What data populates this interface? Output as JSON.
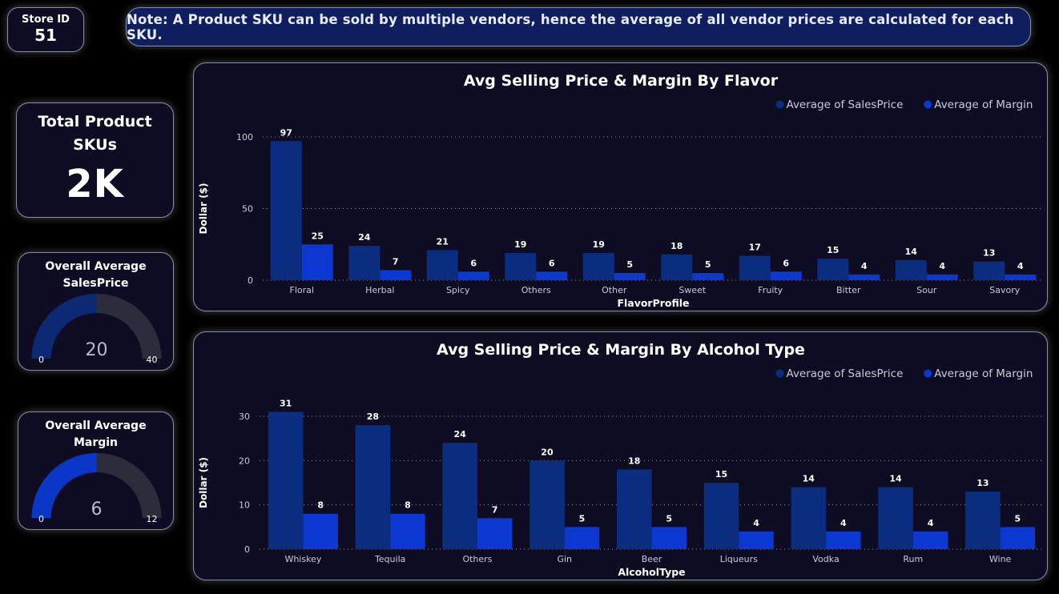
{
  "store": {
    "label": "Store ID",
    "value": "51"
  },
  "note": "Note: A Product SKU can be sold by multiple vendors, hence the average of all vendor prices are calculated for each SKU.",
  "kpi": {
    "label": "Total Product SKUs",
    "value": "2K"
  },
  "gauges": [
    {
      "title": "Overall Average SalesPrice",
      "value": 20,
      "min": 0,
      "max": 40,
      "value_label": "20",
      "min_label": "0",
      "max_label": "40",
      "fill_color": "#0b2a73",
      "track_color": "#2b2d3d"
    },
    {
      "title": "Overall Average Margin",
      "value": 6,
      "min": 0,
      "max": 12,
      "value_label": "6",
      "min_label": "0",
      "max_label": "12",
      "fill_color": "#0a37c8",
      "track_color": "#2b2d3d"
    }
  ],
  "colors": {
    "sales": "#0b2d80",
    "margin": "#0a38d0"
  },
  "chart_data": [
    {
      "type": "bar",
      "title": "Avg Selling Price & Margin By Flavor",
      "xlabel": "FlavorProfile",
      "ylabel": "Dollar ($)",
      "ylim": [
        0,
        100
      ],
      "yticks": [
        0,
        50,
        100
      ],
      "legend_position": "top-right",
      "categories": [
        "Floral",
        "Herbal",
        "Spicy",
        "Others",
        "Other",
        "Sweet",
        "Fruity",
        "Bitter",
        "Sour",
        "Savory"
      ],
      "series": [
        {
          "name": "Average of SalesPrice",
          "values": [
            97,
            24,
            21,
            19,
            19,
            18,
            17,
            15,
            14,
            13
          ]
        },
        {
          "name": "Average of Margin",
          "values": [
            25,
            7,
            6,
            6,
            5,
            5,
            6,
            4,
            4,
            4
          ]
        }
      ]
    },
    {
      "type": "bar",
      "title": "Avg Selling Price & Margin By Alcohol Type",
      "xlabel": "AlcoholType",
      "ylabel": "Dollar ($)",
      "ylim": [
        0,
        30
      ],
      "yticks": [
        0,
        10,
        20,
        30
      ],
      "legend_position": "top-right",
      "categories": [
        "Whiskey",
        "Tequila",
        "Others",
        "Gin",
        "Beer",
        "Liqueurs",
        "Vodka",
        "Rum",
        "Wine"
      ],
      "series": [
        {
          "name": "Average of SalesPrice",
          "values": [
            31,
            28,
            24,
            20,
            18,
            15,
            14,
            14,
            13
          ]
        },
        {
          "name": "Average of Margin",
          "values": [
            8,
            8,
            7,
            5,
            5,
            4,
            4,
            4,
            5
          ]
        }
      ]
    }
  ]
}
